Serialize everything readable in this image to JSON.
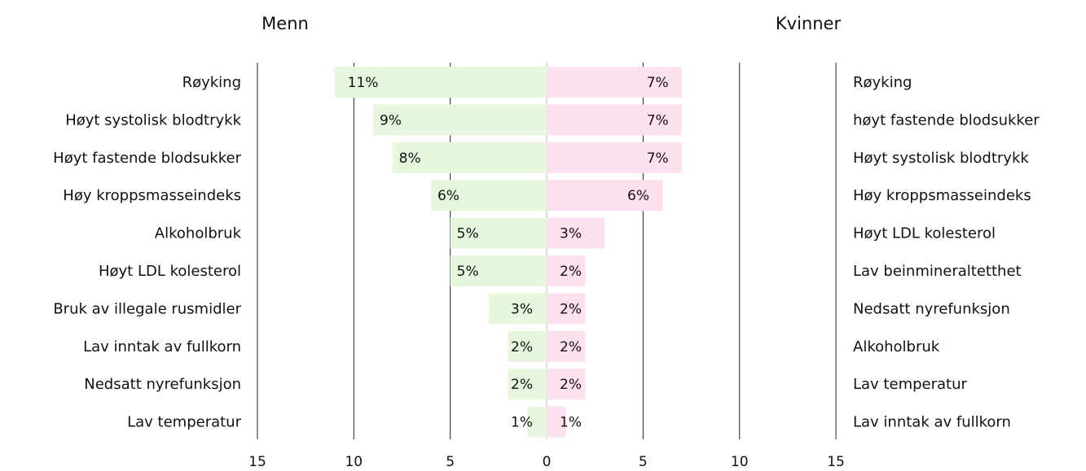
{
  "chart_data": {
    "type": "bar",
    "orientation": "horizontal-butterfly",
    "xlim": [
      0,
      15
    ],
    "x_ticks": [
      "15",
      "10",
      "5",
      "0",
      "5",
      "10",
      "15"
    ],
    "grid": true,
    "panels": [
      {
        "title": "Menn",
        "side": "left",
        "color": "#e6f7de",
        "categories": [
          "Røyking",
          "Høyt systolisk blodtrykk",
          "Høyt fastende blodsukker",
          "Høy kroppsmasseindeks",
          "Alkoholbruk",
          "Høyt LDL kolesterol",
          "Bruk av illegale rusmidler",
          "Lav inntak av fullkorn",
          "Nedsatt nyrefunksjon",
          "Lav temperatur"
        ],
        "values": [
          11,
          9,
          8,
          6,
          5,
          5,
          3,
          2,
          2,
          1
        ],
        "labels": [
          "11%",
          "9%",
          "8%",
          "6%",
          "5%",
          "5%",
          "3%",
          "2%",
          "2%",
          "1%"
        ]
      },
      {
        "title": "Kvinner",
        "side": "right",
        "color": "#fde0f0",
        "categories": [
          "Røyking",
          "høyt fastende blodsukker",
          "Høyt systolisk blodtrykk",
          "Høy kroppsmasseindeks",
          "Høyt LDL kolesterol",
          "Lav beinmineraltetthet",
          "Nedsatt nyrefunksjon",
          "Alkoholbruk",
          "Lav temperatur",
          "Lav inntak av fullkorn"
        ],
        "values": [
          7,
          7,
          7,
          6,
          3,
          2,
          2,
          2,
          2,
          1
        ],
        "labels": [
          "7%",
          "7%",
          "7%",
          "6%",
          "3%",
          "2%",
          "2%",
          "2%",
          "2%",
          "1%"
        ]
      }
    ]
  }
}
